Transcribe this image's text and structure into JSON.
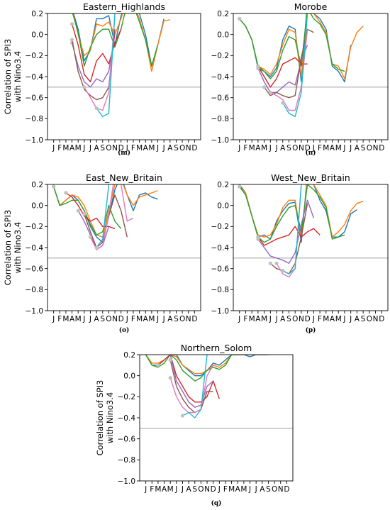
{
  "figure_title": "",
  "month_ticks": [
    "J",
    "F",
    "M",
    "A",
    "M",
    "J",
    "J",
    "A",
    "S",
    "O",
    "N",
    "D",
    "J",
    "F",
    "M",
    "A",
    "M",
    "J",
    "J",
    "A",
    "S",
    "O",
    "N",
    "D"
  ],
  "y_ticks": [
    "0.2",
    "0.0",
    "−0.2",
    "−0.4",
    "−0.6",
    "−0.8",
    "−1.0"
  ],
  "ylabel_line1": "Correlation of SPI3",
  "ylabel_line2": "with Nino3.4",
  "threshold": -0.5,
  "colors": {
    "threshold": "#aaaaaa",
    "marker": "#c0c0c0",
    "series": [
      "#1f77b4",
      "#ff7f0e",
      "#2ca02c",
      "#d62728",
      "#9467bd",
      "#8c564b",
      "#e377c2",
      "#17becf",
      "#bcbd22",
      "#7f7f7f"
    ]
  },
  "chart_data": [
    {
      "type": "line",
      "title": "Eastern_Highlands",
      "caption": "(m)",
      "ylabel": "Correlation of SPI3\nwith Nino3.4",
      "ylim": [
        -1.0,
        0.2
      ],
      "xlim": [
        0,
        25
      ],
      "x": "month index 1-24 (J of year 0 through D of year +1)",
      "series": [
        {
          "values": [
            null,
            null,
            null,
            0.25,
            0.05,
            -0.25,
            -0.15,
            0.15,
            0.15,
            0.18,
            -0.1,
            0.18,
            0.3,
            0.3,
            0.2,
            0.0,
            -0.3,
            -0.1,
            0.15
          ]
        },
        {
          "values": [
            null,
            null,
            null,
            0.25,
            0.0,
            -0.2,
            -0.15,
            0.1,
            0.08,
            0.12,
            0.0,
            0.15,
            0.35,
            0.3,
            0.15,
            -0.05,
            -0.35,
            -0.1,
            0.13,
            0.14
          ]
        },
        {
          "values": [
            null,
            null,
            null,
            0.22,
            0.02,
            -0.3,
            -0.12,
            0.0,
            0.05,
            0.05,
            -0.12,
            0.05,
            0.3,
            0.28,
            0.12,
            -0.05,
            -0.3,
            -0.1
          ]
        },
        {
          "values": [
            null,
            null,
            null,
            0.1,
            -0.1,
            -0.38,
            -0.45,
            -0.25,
            -0.18,
            -0.28,
            -0.08,
            0.05
          ]
        },
        {
          "values": [
            null,
            null,
            null,
            -0.08,
            -0.3,
            -0.45,
            -0.5,
            -0.42,
            -0.45,
            -0.35,
            0.0
          ]
        },
        {
          "values": [
            null,
            null,
            null,
            -0.05,
            -0.35,
            -0.52,
            -0.58,
            -0.62,
            -0.6,
            -0.5,
            0.05
          ]
        },
        {
          "values": [
            null,
            null,
            null,
            null,
            null,
            -0.5,
            -0.6,
            -0.7,
            -0.72,
            -0.55,
            0.18
          ]
        },
        {
          "values": [
            null,
            null,
            null,
            null,
            null,
            null,
            null,
            -0.7,
            -0.78,
            -0.75,
            0.2
          ]
        }
      ]
    },
    {
      "type": "line",
      "title": "Morobe",
      "caption": "(n)",
      "ylabel": "",
      "ylim": [
        -1.0,
        0.2
      ],
      "xlim": [
        0,
        25
      ],
      "series": [
        {
          "values": [
            0.15,
            0.08,
            -0.05,
            -0.32,
            -0.35,
            -0.4,
            -0.32,
            -0.05,
            0.08,
            0.05,
            -0.45,
            0.32,
            0.2,
            0.15,
            0.05,
            -0.3,
            -0.35,
            -0.45,
            -0.1
          ]
        },
        {
          "values": [
            0.15,
            0.08,
            -0.05,
            -0.3,
            -0.33,
            -0.38,
            -0.28,
            -0.1,
            0.05,
            0.02,
            -0.4,
            0.3,
            0.2,
            0.12,
            0.02,
            -0.28,
            -0.3,
            -0.42,
            -0.12,
            0.02,
            0.08
          ]
        },
        {
          "values": [
            0.15,
            0.08,
            -0.05,
            -0.3,
            -0.35,
            -0.42,
            -0.35,
            -0.15,
            -0.02,
            -0.05,
            -0.3,
            0.25,
            0.15,
            0.1,
            0.0,
            -0.28,
            -0.33,
            -0.35
          ]
        },
        {
          "values": [
            null,
            null,
            null,
            -0.3,
            -0.4,
            -0.5,
            -0.42,
            -0.28,
            -0.25,
            -0.22,
            -0.28,
            -0.28
          ]
        },
        {
          "values": [
            null,
            null,
            null,
            -0.32,
            -0.45,
            -0.55,
            -0.55,
            -0.5,
            -0.45,
            -0.48,
            -0.25,
            -0.1
          ]
        },
        {
          "values": [
            null,
            null,
            null,
            null,
            -0.5,
            -0.58,
            -0.55,
            -0.58,
            -0.6,
            -0.58,
            -0.22,
            0.05,
            0.02
          ]
        },
        {
          "values": [
            null,
            null,
            null,
            null,
            null,
            -0.55,
            -0.58,
            -0.62,
            -0.72,
            -0.72,
            -0.5,
            0.05
          ]
        },
        {
          "values": [
            null,
            null,
            null,
            null,
            null,
            null,
            null,
            -0.65,
            -0.75,
            -0.78,
            -0.55,
            0.2
          ]
        }
      ]
    },
    {
      "type": "line",
      "title": "East_New_Britain",
      "caption": "(o)",
      "ylabel": "Correlation of SPI3\nwith Nino3.4",
      "ylim": [
        -1.0,
        0.2
      ],
      "xlim": [
        0,
        25
      ],
      "series": [
        {
          "values": [
            0.18,
            0.0,
            0.05,
            0.1,
            0.05,
            -0.05,
            -0.2,
            -0.3,
            -0.35,
            -0.1,
            0.15,
            0.28,
            0.1,
            -0.05,
            0.1,
            0.12,
            0.08,
            0.06
          ]
        },
        {
          "values": [
            0.18,
            0.0,
            0.05,
            0.1,
            0.08,
            0.0,
            -0.15,
            -0.28,
            -0.3,
            -0.05,
            0.2,
            0.25,
            0.1,
            0.0,
            0.08,
            0.1,
            0.12,
            0.14
          ]
        },
        {
          "values": [
            0.18,
            0.0,
            0.02,
            0.05,
            0.05,
            -0.05,
            -0.18,
            -0.28,
            -0.25,
            0.0,
            -0.15,
            -0.22
          ]
        },
        {
          "values": [
            null,
            null,
            0.12,
            0.08,
            0.0,
            -0.1,
            -0.15,
            -0.12,
            -0.2,
            -0.2,
            -0.22
          ]
        },
        {
          "values": [
            null,
            null,
            null,
            null,
            -0.05,
            -0.15,
            -0.28,
            -0.42,
            -0.38,
            -0.2
          ]
        },
        {
          "values": [
            null,
            null,
            null,
            null,
            null,
            -0.08,
            -0.25,
            -0.4,
            -0.35,
            -0.1,
            0.1,
            -0.05,
            -0.3
          ]
        },
        {
          "values": [
            null,
            null,
            null,
            null,
            null,
            null,
            -0.3,
            -0.42,
            -0.38,
            -0.08,
            0.3,
            0.2,
            -0.15,
            -0.12
          ]
        },
        {
          "values": [
            null,
            null,
            null,
            null,
            null,
            null,
            null,
            -0.4,
            -0.32,
            0.2
          ]
        }
      ]
    },
    {
      "type": "line",
      "title": "West_New_Britain",
      "caption": "(p)",
      "ylabel": "",
      "ylim": [
        -1.0,
        0.2
      ],
      "xlim": [
        0,
        25
      ],
      "series": [
        {
          "values": [
            0.2,
            0.12,
            -0.1,
            -0.3,
            -0.28,
            -0.32,
            -0.15,
            -0.05,
            0.02,
            0.03,
            -0.35,
            0.3,
            0.2,
            0.05,
            -0.05,
            -0.3,
            -0.3,
            -0.25,
            -0.08,
            -0.04
          ]
        },
        {
          "values": [
            0.18,
            0.12,
            -0.1,
            -0.28,
            -0.3,
            -0.28,
            -0.18,
            -0.02,
            0.05,
            0.05,
            -0.3,
            0.25,
            0.2,
            0.1,
            0.0,
            -0.3,
            -0.25,
            -0.18,
            -0.05,
            0.02,
            0.04
          ]
        },
        {
          "values": [
            0.18,
            0.1,
            -0.1,
            -0.3,
            -0.35,
            -0.32,
            -0.2,
            -0.1,
            -0.02,
            0.0,
            -0.25,
            0.2,
            0.15,
            0.08,
            -0.02,
            -0.32,
            -0.3,
            -0.28
          ]
        },
        {
          "values": [
            null,
            null,
            null,
            -0.3,
            -0.38,
            -0.35,
            -0.32,
            -0.3,
            -0.28,
            -0.2,
            -0.3,
            -0.25,
            -0.22,
            -0.28
          ]
        },
        {
          "values": [
            null,
            null,
            null,
            -0.32,
            -0.4,
            -0.48,
            -0.5,
            -0.52,
            -0.55,
            -0.45,
            -0.18,
            0.05,
            -0.12
          ]
        },
        {
          "values": [
            null,
            null,
            null,
            null,
            null,
            -0.55,
            -0.6,
            -0.62,
            -0.65,
            -0.55,
            -0.3,
            0.02
          ]
        },
        {
          "values": [
            null,
            null,
            null,
            null,
            null,
            null,
            -0.55,
            -0.65,
            -0.68,
            -0.6,
            0.2
          ]
        },
        {
          "values": [
            null,
            null,
            null,
            null,
            null,
            null,
            null,
            -0.62,
            -0.65,
            -0.6,
            0.2
          ]
        }
      ]
    },
    {
      "type": "line",
      "title": "Northern_Solom",
      "caption": "(q)",
      "ylabel": "Correlation of SPI3\nwith Nino3.4",
      "ylim": [
        -1.0,
        0.2
      ],
      "xlim": [
        0,
        25
      ],
      "series": [
        {
          "values": [
            0.2,
            0.1,
            0.1,
            0.15,
            0.2,
            0.2,
            0.1,
            0.05,
            0.0,
            0.0,
            0.05,
            0.12,
            0.1,
            0.15,
            0.2,
            0.2,
            0.2,
            0.18,
            0.2,
            0.2,
            0.2
          ]
        },
        {
          "values": [
            0.2,
            0.12,
            0.12,
            0.15,
            0.2,
            0.18,
            0.1,
            0.06,
            0.02,
            0.02,
            0.05,
            0.1,
            0.08,
            0.12,
            0.2,
            0.2,
            0.2,
            0.2,
            0.2,
            0.2
          ]
        },
        {
          "values": [
            0.2,
            0.1,
            0.08,
            0.12,
            0.2,
            0.15,
            0.05,
            0.0,
            -0.05,
            -0.02,
            0.05,
            0.08,
            0.06,
            0.1,
            0.2,
            0.2
          ]
        },
        {
          "values": [
            null,
            null,
            0.1,
            0.15,
            0.2,
            0.0,
            -0.1,
            -0.2,
            -0.25,
            -0.25,
            -0.2,
            -0.05,
            -0.22
          ]
        },
        {
          "values": [
            null,
            null,
            null,
            null,
            0.2,
            -0.05,
            -0.15,
            -0.25,
            -0.3,
            -0.28,
            -0.1,
            -0.05
          ]
        },
        {
          "values": [
            null,
            null,
            null,
            null,
            0.15,
            -0.1,
            -0.22,
            -0.3,
            -0.35,
            -0.32,
            -0.15,
            -0.15
          ]
        },
        {
          "values": [
            null,
            null,
            null,
            null,
            -0.02,
            -0.2,
            -0.3,
            -0.35,
            -0.35,
            -0.32,
            0.0,
            0.1
          ]
        },
        {
          "values": [
            null,
            null,
            null,
            null,
            null,
            null,
            -0.38,
            -0.35,
            -0.4,
            -0.32,
            0.2
          ]
        }
      ]
    }
  ]
}
